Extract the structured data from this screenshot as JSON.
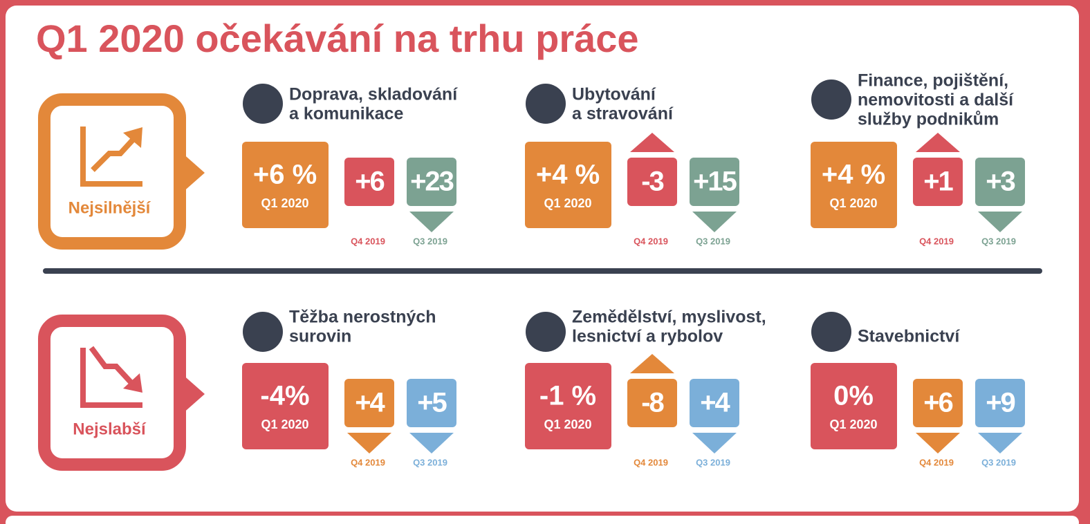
{
  "title": "Q1 2020 očekávání na trhu práce",
  "groups": [
    {
      "label": "Nejsilnější",
      "color": "#e3883a",
      "trend": "up",
      "sectors": [
        {
          "name": [
            "Doprava, skladování",
            "a komunikace"
          ],
          "q1": {
            "value": "+6 %",
            "label": "Q1 2020",
            "color": "#e3883a"
          },
          "q4": {
            "value": "+6",
            "label": "Q4 2019",
            "color": "#d9545c"
          },
          "q3": {
            "value": "+23",
            "label": "Q3 2019",
            "color": "#7ca292",
            "arrow": "down"
          }
        },
        {
          "name": [
            "Ubytování",
            "a stravování"
          ],
          "q1": {
            "value": "+4 %",
            "label": "Q1 2020",
            "color": "#e3883a"
          },
          "q4": {
            "value": "-3",
            "label": "Q4 2019",
            "color": "#d9545c",
            "arrow": "up"
          },
          "q3": {
            "value": "+15",
            "label": "Q3 2019",
            "color": "#7ca292",
            "arrow": "down"
          }
        },
        {
          "name": [
            "Finance, pojištění,",
            "nemovitosti a další",
            "služby podnikům"
          ],
          "q1": {
            "value": "+4 %",
            "label": "Q1 2020",
            "color": "#e3883a"
          },
          "q4": {
            "value": "+1",
            "label": "Q4 2019",
            "color": "#d9545c",
            "arrow": "up"
          },
          "q3": {
            "value": "+3",
            "label": "Q3 2019",
            "color": "#7ca292",
            "arrow": "down"
          }
        }
      ]
    },
    {
      "label": "Nejslabší",
      "color": "#d9545c",
      "trend": "down",
      "sectors": [
        {
          "name": [
            "Těžba nerostných",
            "surovin"
          ],
          "q1": {
            "value": "-4%",
            "label": "Q1 2020",
            "color": "#d9545c"
          },
          "q4": {
            "value": "+4",
            "label": "Q4 2019",
            "color": "#e3883a",
            "arrow": "down"
          },
          "q3": {
            "value": "+5",
            "label": "Q3 2019",
            "color": "#7bafd9",
            "arrow": "down"
          }
        },
        {
          "name": [
            "Zemědělství, myslivost,",
            "lesnictví a rybolov"
          ],
          "q1": {
            "value": "-1 %",
            "label": "Q1 2020",
            "color": "#d9545c"
          },
          "q4": {
            "value": "-8",
            "label": "Q4 2019",
            "color": "#e3883a",
            "arrow": "up"
          },
          "q3": {
            "value": "+4",
            "label": "Q3 2019",
            "color": "#7bafd9",
            "arrow": "down"
          }
        },
        {
          "name": [
            "Stavebnictví"
          ],
          "q1": {
            "value": "0%",
            "label": "Q1 2020",
            "color": "#d9545c"
          },
          "q4": {
            "value": "+6",
            "label": "Q4 2019",
            "color": "#e3883a",
            "arrow": "down"
          },
          "q3": {
            "value": "+9",
            "label": "Q3 2019",
            "color": "#7bafd9",
            "arrow": "down"
          }
        }
      ]
    }
  ]
}
